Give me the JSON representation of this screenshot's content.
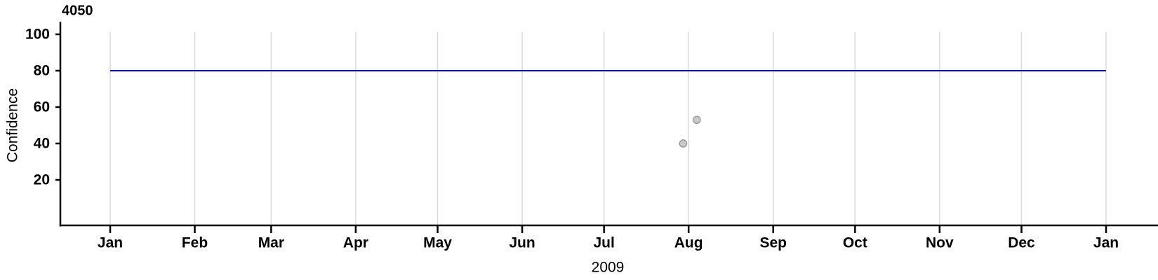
{
  "chart_data": {
    "type": "scatter",
    "title": "4050",
    "xlabel": "2009",
    "ylabel": "Confidence",
    "x_axis": {
      "kind": "date",
      "tick_labels": [
        "Jan",
        "Feb",
        "Mar",
        "Apr",
        "May",
        "Jun",
        "Jul",
        "Aug",
        "Sep",
        "Oct",
        "Nov",
        "Dec",
        "Jan"
      ],
      "tick_day_offsets": [
        0,
        31,
        59,
        90,
        120,
        151,
        181,
        212,
        243,
        273,
        304,
        334,
        365
      ],
      "span_days": 365,
      "range_days_shown": [
        -18.5,
        384
      ]
    },
    "y_axis": {
      "ticks": [
        20,
        40,
        60,
        80,
        100
      ],
      "range_shown": [
        -5,
        101.5
      ]
    },
    "grid": {
      "vertical": true,
      "horizontal": false,
      "color": "#d9d9d9"
    },
    "reference_line": {
      "y": 80,
      "day_start": 0,
      "day_end": 365,
      "color": "#0000c8",
      "width": 2
    },
    "points": [
      {
        "day": 210,
        "value": 40
      },
      {
        "day": 215,
        "value": 53
      }
    ],
    "point_style": {
      "fill": "#c8c8c8",
      "stroke": "#969696",
      "radius": 5.2
    },
    "axis_color": "#000000"
  }
}
